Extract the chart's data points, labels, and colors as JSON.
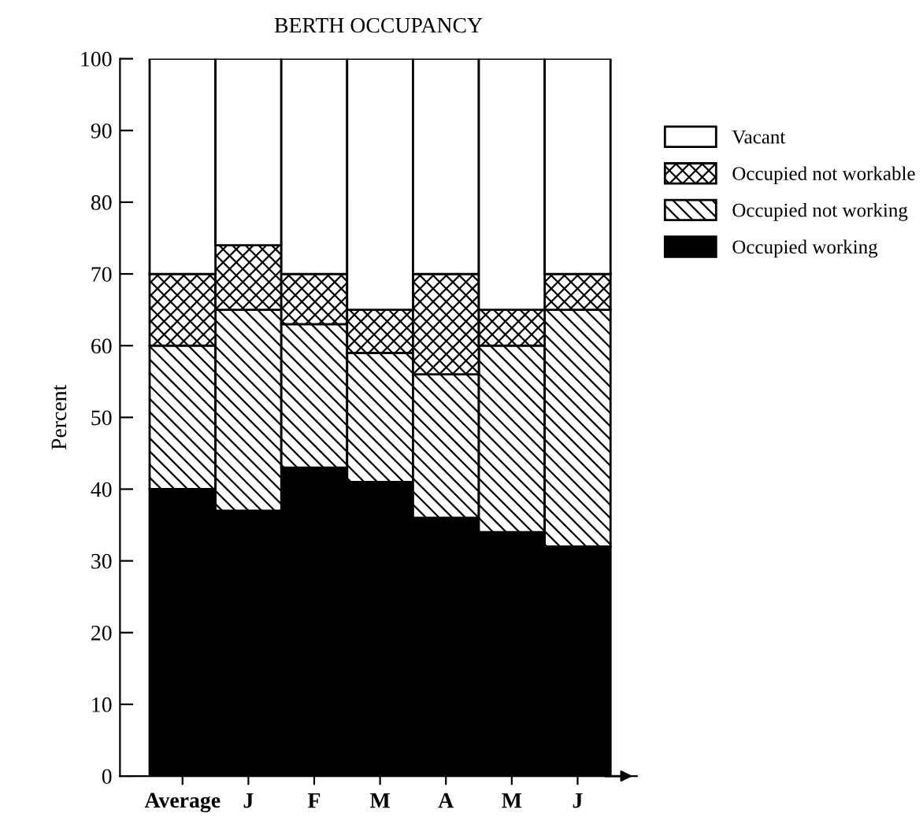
{
  "chart_data": {
    "type": "bar",
    "title": "BERTH OCCUPANCY",
    "ylabel": "Percent",
    "stacked": true,
    "categories": [
      "Average",
      "J",
      "F",
      "M",
      "A",
      "M",
      "J"
    ],
    "series": [
      {
        "name": "Occupied working",
        "color": "#000000",
        "values": [
          40,
          37,
          43,
          41,
          36,
          34,
          32
        ]
      },
      {
        "name": "Occupied not working",
        "color": "#000000",
        "values": [
          20,
          28,
          20,
          18,
          20,
          26,
          33
        ]
      },
      {
        "name": "Occupied not workable",
        "color": "#000000",
        "values": [
          10,
          9,
          7,
          6,
          14,
          5,
          5
        ]
      },
      {
        "name": "Vacant",
        "color": "#ffffff",
        "values": [
          30,
          26,
          30,
          35,
          30,
          35,
          30
        ]
      }
    ],
    "ylim": [
      0,
      100
    ],
    "yticks": [
      0,
      10,
      20,
      30,
      40,
      50,
      60,
      70,
      80,
      90,
      100
    ],
    "grid": false,
    "legend": "right"
  }
}
